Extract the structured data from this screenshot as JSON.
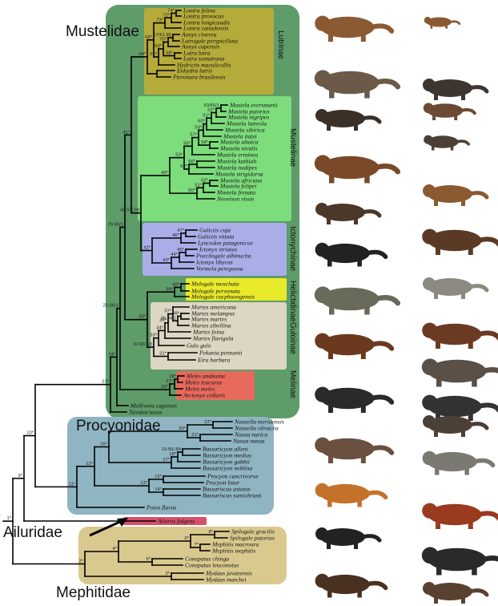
{
  "colors": {
    "mustelidae_bg": "#5e9c6a",
    "lutrinae_bg": "#b5ab3a",
    "mustelinae_bg": "#7ddc7c",
    "ictonychinae_bg": "#a9aee8",
    "helictidinae_bg": "#e8ea2a",
    "guloinae_bg": "#ddd6c2",
    "melinae_bg": "#e86a5c",
    "procyonidae_bg": "#8fb4c2",
    "ailuridae_bg": "#d6506a",
    "mephitidae_bg": "#d9c98e"
  },
  "families": {
    "mustelidae": "Mustelidae",
    "procyonidae": "Procyonidae",
    "ailuridae": "Ailuridae",
    "mephitidae": "Mephitidae"
  },
  "subfamilies": {
    "lutrinae": "Lutrinae",
    "mustelinae": "Mustelinae",
    "ictonychinae": "Ictonychinae",
    "helictidinae": "Helictidinae",
    "guloinae": "Guloinae",
    "melinae": "Melinae"
  },
  "taxa": [
    "Lontra felina",
    "Lontra provocax",
    "Lontra longicaudis",
    "Lontra canadensis",
    "Aonyx cinerea",
    "Lutrogale perspicillata",
    "Aonyx capensis",
    "Lutra lutra",
    "Lutra sumatrana",
    "Hydrictis maculicollis",
    "Enhydra lutris",
    "Pteronura brasilensis",
    "Mustela eversmanii",
    "Mustela putorius",
    "Mustela nigripes",
    "Mustela lutreola",
    "Mustela sibirica",
    "Mustela itatsi",
    "Mustela altaica",
    "Mustela nivalis",
    "Mustela erminea",
    "Mustela kathiah",
    "Mustela nudipes",
    "Mustela strigidorsa",
    "Mustela africana",
    "Mustela felipei",
    "Mustela frenata",
    "Neovison vison",
    "Galictis cuja",
    "Galictis vittata",
    "Lyncodon patagonicus",
    "Ictonyx striatus",
    "Poecilogale albinucha",
    "Ictonyx libycus",
    "Vormela peregusna",
    "Melogale moschata",
    "Melogale personata",
    "Melogale cucphuongensis",
    "Martes americana",
    "Martes melampus",
    "Martes martes",
    "Martes zibellina",
    "Martes foina",
    "Martes flavigula",
    "Gulo gulo",
    "Pekania pennanti",
    "Eira barbara",
    "Meles anakuma",
    "Meles leucurus",
    "Meles meles",
    "Arctonyx collaris",
    "Mellivora capensis",
    "Taxidea taxus",
    "Nasuella meridensis",
    "Nasuella olivacea",
    "Nasua narica",
    "Nasua nasua",
    "Bassaricyon alleni",
    "Bassaricyon medius",
    "Bassaricyon gabbii",
    "Bassaricyon neblina",
    "Procyon cancrivorus",
    "Procyon lotor",
    "Bassariscus astutus",
    "Bassariscus sumichrasti",
    "Potos flavus",
    "Ailurus fulgens",
    "Spilogale gracilis",
    "Spilogale putorius",
    "Mephitis macroura",
    "Mephitis mephitis",
    "Conepatus chinga",
    "Conepatus leuconotus",
    "Mydaus javanensis",
    "Mydaus marchei"
  ],
  "support_labels": [
    "74*",
    "72*",
    "73*",
    "67/61.85",
    "70*",
    "68*",
    "69*",
    "65*",
    "66*",
    "64*",
    "63/65/1",
    "62*",
    "61*",
    "60*",
    "59*",
    "58*",
    "57*",
    "55*",
    "56*",
    "54*",
    "53*",
    "52*",
    "51*",
    "50*",
    "49*",
    "48.59/.98",
    "47*",
    "46*",
    "45*",
    "44*",
    "43*",
    "42*",
    "41*",
    "40*",
    "39*",
    "38*",
    "36.84/1",
    "37*",
    "35*",
    "34*",
    "33*",
    "31*",
    "32.60/.53",
    "30*",
    "28*",
    "27*",
    "26*",
    "29.80/1",
    "25.66/1",
    "24*",
    "23*",
    "22*",
    "21*",
    "20*",
    "19.56/.84",
    "18*",
    "17*",
    "16*",
    "15*",
    "14*",
    "13*",
    "12*",
    "11*",
    "10*",
    "8*",
    "7*",
    "6*",
    "5*",
    "4*",
    "3*",
    "2*",
    "9*",
    "1*"
  ],
  "animal_icons": [
    "otter-icon",
    "weasel-icon",
    "river-otter-icon",
    "ferret-icon",
    "mink-icon",
    "polecat-icon",
    "stoat-icon",
    "least-weasel-icon",
    "mink-dark-icon",
    "long-tailed-weasel-icon",
    "grison-icon",
    "zorilla-icon",
    "marbled-polecat-icon",
    "ferret-badger-icon",
    "ferret-badger-2-icon",
    "wolverine-icon",
    "marten-icon",
    "hog-badger-icon",
    "eurasian-badger-icon",
    "honey-badger-icon",
    "american-badger-icon",
    "coati-icon",
    "raccoon-icon",
    "olingo-icon",
    "red-panda-icon",
    "spotted-skunk-icon",
    "striped-skunk-icon",
    "stink-badger-icon"
  ]
}
